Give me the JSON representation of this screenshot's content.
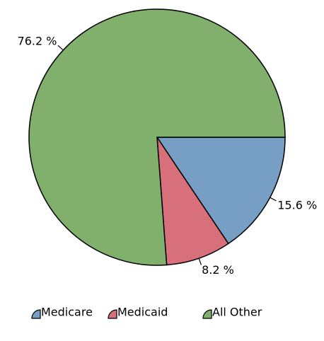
{
  "chart_data": {
    "type": "pie",
    "categories": [
      "Medicare",
      "Medicaid",
      "All Other"
    ],
    "values": [
      15.6,
      8.2,
      76.2
    ],
    "value_labels": [
      "15.6 %",
      "8.2 %",
      "76.2 %"
    ],
    "colors": [
      "#779ec5",
      "#d8707b",
      "#80b06b"
    ],
    "legend": "bottom"
  }
}
